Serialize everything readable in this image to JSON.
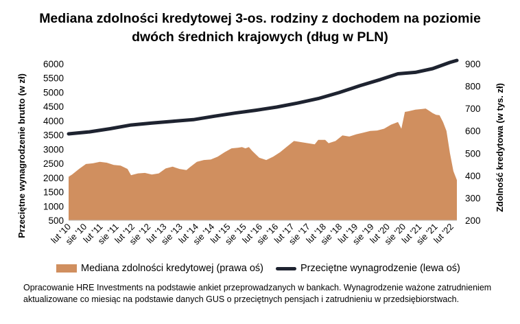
{
  "title_line1": "Mediana zdolności kredytowej 3-os. rodziny z dochodem na poziomie",
  "title_line2": "dwóch średnich krajowych (dług w PLN)",
  "source_note": "Opracowanie HRE Investments na podstawie ankiet przeprowadzanych w bankach. Wynagrodzenie ważone zatrudnieniem aktualizowane co miesiąc na podstawie danych GUS o przeciętnych pensjach i zatrudnieniu w przedsiębiorstwach.",
  "colors": {
    "area": "#d08f5f",
    "line": "#1e2330"
  },
  "chart_data": {
    "type": "line+area",
    "x": [
      "lut '10",
      "sie '10",
      "lut '11",
      "sie '11",
      "lut '12",
      "sie '12",
      "lut '13",
      "sie '13",
      "lut '14",
      "sie '14",
      "lut '15",
      "sie '15",
      "lut '16",
      "sie '16",
      "lut '17",
      "sie '17",
      "lut '18",
      "sie '18",
      "lut '19",
      "sie '19",
      "lut '20",
      "sie '20",
      "lut '21",
      "sie '21",
      "lut '22"
    ],
    "left_axis": {
      "label": "Przeciętne wynagrodzenie brutto (w zł)",
      "ylim": [
        500,
        6000
      ],
      "ticks": [
        500,
        1000,
        1500,
        2000,
        2500,
        3000,
        3500,
        4000,
        4500,
        5000,
        5500,
        6000
      ]
    },
    "right_axis": {
      "label": "Zdolność kredytowa (w tys. zł)",
      "ylim": [
        200,
        900
      ],
      "ticks": [
        200,
        300,
        400,
        500,
        600,
        700,
        800,
        900
      ]
    },
    "series": [
      {
        "name": "Mediana zdolności kredytowej (prawa oś)",
        "type": "area",
        "axis": "right",
        "values": [
          [
            0,
            395
          ],
          [
            1,
            405
          ],
          [
            3,
            430
          ],
          [
            5,
            452
          ],
          [
            7,
            455
          ],
          [
            9,
            462
          ],
          [
            11,
            458
          ],
          [
            13,
            448
          ],
          [
            15,
            445
          ],
          [
            17,
            430
          ],
          [
            18,
            402
          ],
          [
            20,
            410
          ],
          [
            22,
            412
          ],
          [
            24,
            405
          ],
          [
            26,
            410
          ],
          [
            28,
            432
          ],
          [
            30,
            440
          ],
          [
            32,
            430
          ],
          [
            34,
            425
          ],
          [
            35,
            438
          ],
          [
            37,
            462
          ],
          [
            39,
            470
          ],
          [
            41,
            472
          ],
          [
            43,
            485
          ],
          [
            45,
            505
          ],
          [
            47,
            522
          ],
          [
            49,
            525
          ],
          [
            50,
            528
          ],
          [
            51,
            522
          ],
          [
            52,
            528
          ],
          [
            53,
            510
          ],
          [
            55,
            480
          ],
          [
            57,
            470
          ],
          [
            59,
            485
          ],
          [
            61,
            505
          ],
          [
            63,
            530
          ],
          [
            65,
            555
          ],
          [
            67,
            550
          ],
          [
            69,
            545
          ],
          [
            71,
            540
          ],
          [
            72,
            560
          ],
          [
            74,
            560
          ],
          [
            75,
            545
          ],
          [
            77,
            555
          ],
          [
            79,
            580
          ],
          [
            81,
            575
          ],
          [
            83,
            585
          ],
          [
            85,
            592
          ],
          [
            87,
            600
          ],
          [
            89,
            602
          ],
          [
            91,
            610
          ],
          [
            93,
            628
          ],
          [
            95,
            640
          ],
          [
            96,
            610
          ],
          [
            97,
            685
          ],
          [
            98,
            688
          ],
          [
            100,
            695
          ],
          [
            102,
            698
          ],
          [
            103,
            700
          ],
          [
            104,
            690
          ],
          [
            105,
            680
          ],
          [
            106,
            672
          ],
          [
            107,
            670
          ],
          [
            108,
            640
          ],
          [
            109,
            600
          ],
          [
            110,
            500
          ],
          [
            111,
            420
          ],
          [
            112,
            380
          ]
        ]
      },
      {
        "name": "Przeciętne wynagrodzenie (lewa oś)",
        "type": "line",
        "axis": "left",
        "values": [
          [
            0,
            3540
          ],
          [
            6,
            3610
          ],
          [
            12,
            3720
          ],
          [
            18,
            3850
          ],
          [
            24,
            3920
          ],
          [
            30,
            3980
          ],
          [
            36,
            4040
          ],
          [
            42,
            4160
          ],
          [
            48,
            4270
          ],
          [
            54,
            4370
          ],
          [
            60,
            4480
          ],
          [
            66,
            4620
          ],
          [
            72,
            4780
          ],
          [
            78,
            4990
          ],
          [
            84,
            5230
          ],
          [
            90,
            5450
          ],
          [
            95,
            5650
          ],
          [
            100,
            5700
          ],
          [
            105,
            5830
          ],
          [
            110,
            6050
          ],
          [
            112,
            6120
          ]
        ]
      }
    ],
    "x_month_count": 113,
    "grid": false
  }
}
